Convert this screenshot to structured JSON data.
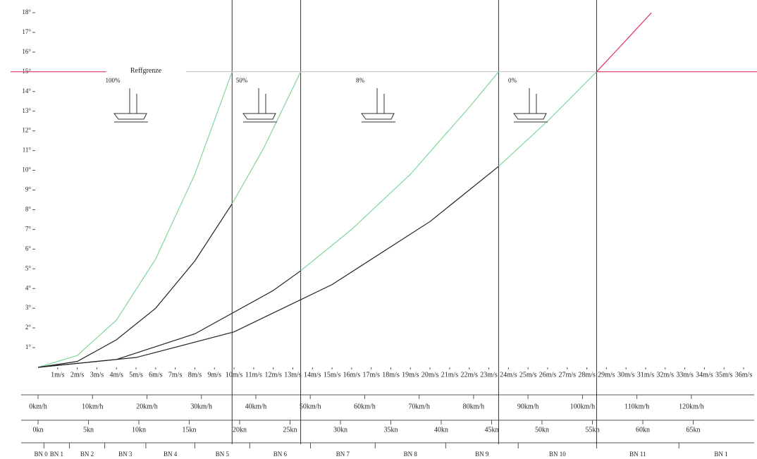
{
  "chart_data": {
    "type": "line",
    "xlim": [
      0,
      36
    ],
    "ylim": [
      0,
      18.5
    ],
    "xticks": [
      {
        "value": 1,
        "label": "1m/s"
      },
      {
        "value": 2,
        "label": "2m/s"
      },
      {
        "value": 3,
        "label": "3m/s"
      },
      {
        "value": 4,
        "label": "4m/s"
      },
      {
        "value": 5,
        "label": "5m/s"
      },
      {
        "value": 6,
        "label": "6m/s"
      },
      {
        "value": 7,
        "label": "7m/s"
      },
      {
        "value": 8,
        "label": "8m/s"
      },
      {
        "value": 9,
        "label": "9m/s"
      },
      {
        "value": 10,
        "label": "10m/s"
      },
      {
        "value": 11,
        "label": "11m/s"
      },
      {
        "value": 12,
        "label": "12m/s"
      },
      {
        "value": 13,
        "label": "13m/s"
      },
      {
        "value": 14,
        "label": "14m/s"
      },
      {
        "value": 15,
        "label": "15m/s"
      },
      {
        "value": 16,
        "label": "16m/s"
      },
      {
        "value": 17,
        "label": "17m/s"
      },
      {
        "value": 18,
        "label": "18m/s"
      },
      {
        "value": 19,
        "label": "19m/s"
      },
      {
        "value": 20,
        "label": "20m/s"
      },
      {
        "value": 21,
        "label": "21m/s"
      },
      {
        "value": 22,
        "label": "22m/s"
      },
      {
        "value": 23,
        "label": "23m/s"
      },
      {
        "value": 24,
        "label": "24m/s"
      },
      {
        "value": 25,
        "label": "25m/s"
      },
      {
        "value": 26,
        "label": "26m/s"
      },
      {
        "value": 27,
        "label": "27m/s"
      },
      {
        "value": 28,
        "label": "28m/s"
      },
      {
        "value": 29,
        "label": "29m/s"
      },
      {
        "value": 30,
        "label": "30m/s"
      },
      {
        "value": 31,
        "label": "31m/s"
      },
      {
        "value": 32,
        "label": "32m/s"
      },
      {
        "value": 33,
        "label": "33m/s"
      },
      {
        "value": 34,
        "label": "34m/s"
      },
      {
        "value": 35,
        "label": "35m/s"
      },
      {
        "value": 36,
        "label": "36m/s"
      }
    ],
    "yticks": [
      {
        "value": 1,
        "label": "1°"
      },
      {
        "value": 2,
        "label": "2°"
      },
      {
        "value": 3,
        "label": "3°"
      },
      {
        "value": 4,
        "label": "4°"
      },
      {
        "value": 5,
        "label": "5°"
      },
      {
        "value": 6,
        "label": "6°"
      },
      {
        "value": 7,
        "label": "7°"
      },
      {
        "value": 8,
        "label": "8°"
      },
      {
        "value": 9,
        "label": "9°"
      },
      {
        "value": 10,
        "label": "10°"
      },
      {
        "value": 11,
        "label": "11°"
      },
      {
        "value": 12,
        "label": "12°"
      },
      {
        "value": 13,
        "label": "13°"
      },
      {
        "value": 14,
        "label": "14°"
      },
      {
        "value": 15,
        "label": "15°"
      },
      {
        "value": 16,
        "label": "16°"
      },
      {
        "value": 17,
        "label": "17°"
      },
      {
        "value": 18,
        "label": "18°"
      }
    ],
    "series": [
      {
        "color": "#7fd69a",
        "x": [
          0,
          2,
          4,
          6,
          8,
          9.9
        ],
        "values": [
          0,
          0.6,
          2.4,
          5.5,
          9.8,
          15
        ]
      },
      {
        "color": "#222222",
        "x": [
          0,
          2,
          4,
          6,
          8,
          9.9
        ],
        "values": [
          0,
          0.3,
          1.4,
          3.0,
          5.4,
          8.3
        ]
      },
      {
        "color": "#7fd69a",
        "x": [
          9.9,
          11.5,
          13.4
        ],
        "values": [
          8.3,
          11.1,
          15
        ]
      },
      {
        "color": "#222222",
        "x": [
          0,
          4,
          8,
          12,
          13.4
        ],
        "values": [
          0,
          0.4,
          1.7,
          3.9,
          4.9
        ]
      },
      {
        "color": "#7fd69a",
        "x": [
          13.4,
          16,
          19,
          22,
          23.5
        ],
        "values": [
          4.9,
          7.0,
          9.8,
          13.2,
          15
        ]
      },
      {
        "color": "#222222",
        "x": [
          0,
          5,
          10,
          15,
          20,
          23.5
        ],
        "values": [
          0,
          0.5,
          1.8,
          4.2,
          7.4,
          10.2
        ]
      },
      {
        "color": "#7fd69a",
        "x": [
          23.5,
          26,
          28.5
        ],
        "values": [
          10.2,
          12.5,
          15
        ]
      },
      {
        "color": "#e0305a",
        "x": [
          28.5,
          30,
          31.3
        ],
        "values": [
          15,
          16.6,
          18
        ]
      }
    ],
    "vlines": [
      9.9,
      13.4,
      23.5,
      28.5
    ],
    "hline": {
      "value": 15,
      "label": "Reffgrenze",
      "color": "#e0305a"
    },
    "annotations": [
      "100%",
      "50%",
      "8%",
      "0%"
    ],
    "kmh_axis": {
      "xlim": [
        0,
        129.6
      ],
      "xticks": [
        {
          "value": 0,
          "label": "0km/h"
        },
        {
          "value": 10,
          "label": "10km/h"
        },
        {
          "value": 20,
          "label": "20km/h"
        },
        {
          "value": 30,
          "label": "30km/h"
        },
        {
          "value": 40,
          "label": "40km/h"
        },
        {
          "value": 50,
          "label": "50km/h"
        },
        {
          "value": 60,
          "label": "60km/h"
        },
        {
          "value": 70,
          "label": "70km/h"
        },
        {
          "value": 80,
          "label": "80km/h"
        },
        {
          "value": 90,
          "label": "90km/h"
        },
        {
          "value": 100,
          "label": "100km/h"
        },
        {
          "value": 110,
          "label": "110km/h"
        },
        {
          "value": 120,
          "label": "120km/h"
        }
      ]
    },
    "kn_axis": {
      "xlim": [
        0,
        70
      ],
      "xticks": [
        {
          "value": 0,
          "label": "0kn"
        },
        {
          "value": 5,
          "label": "5kn"
        },
        {
          "value": 10,
          "label": "10kn"
        },
        {
          "value": 15,
          "label": "15kn"
        },
        {
          "value": 20,
          "label": "20kn"
        },
        {
          "value": 25,
          "label": "25kn"
        },
        {
          "value": 30,
          "label": "30kn"
        },
        {
          "value": 35,
          "label": "35kn"
        },
        {
          "value": 40,
          "label": "40kn"
        },
        {
          "value": 45,
          "label": "45kn"
        },
        {
          "value": 50,
          "label": "50kn"
        },
        {
          "value": 55,
          "label": "55kn"
        },
        {
          "value": 60,
          "label": "60kn"
        },
        {
          "value": 65,
          "label": "65kn"
        }
      ]
    },
    "beaufort": {
      "edges": [
        0.3,
        1.6,
        3.4,
        5.5,
        8.0,
        10.8,
        13.9,
        17.2,
        20.8,
        24.5,
        28.5,
        32.7
      ],
      "labels": [
        "BN 0",
        "BN 1",
        "BN 2",
        "BN 3",
        "BN 4",
        "BN 5",
        "BN 6",
        "BN 7",
        "BN 8",
        "BN 9",
        "BN 10",
        "BN 11",
        "BN 1"
      ]
    }
  }
}
